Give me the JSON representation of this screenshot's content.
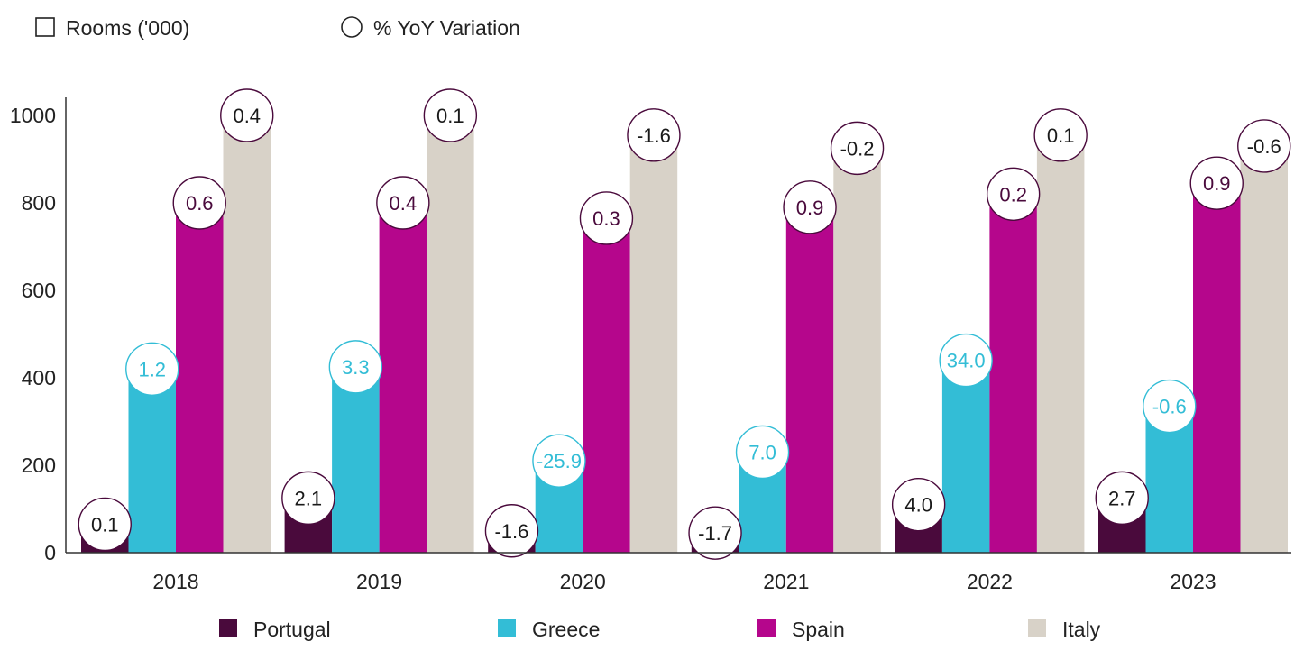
{
  "legend_top": {
    "bars_label": "Rooms ('000)",
    "circles_label": "% YoY Variation"
  },
  "colors": {
    "Portugal": "#4a0a3c",
    "Greece": "#33bdd6",
    "Spain": "#b5068c",
    "Italy": "#d8d2c8",
    "axis": "#333333",
    "circle_border_dark": "#4a0a3c"
  },
  "chart_data": {
    "type": "bar",
    "categories": [
      "2018",
      "2019",
      "2020",
      "2021",
      "2022",
      "2023"
    ],
    "ylim": [
      0,
      1000
    ],
    "yticks": [
      0,
      200,
      400,
      600,
      800,
      1000
    ],
    "xlabel": "",
    "ylabel": "",
    "series": [
      {
        "name": "Portugal",
        "values": [
          65,
          125,
          50,
          45,
          110,
          125
        ],
        "yoy_labels": [
          "0.1",
          "2.1",
          "-1.6",
          "-1.7",
          "4.0",
          "2.7"
        ]
      },
      {
        "name": "Greece",
        "values": [
          420,
          425,
          210,
          230,
          440,
          335
        ],
        "yoy_labels": [
          "1.2",
          "3.3",
          "-25.9",
          "7.0",
          "34.0",
          "-0.6"
        ]
      },
      {
        "name": "Spain",
        "values": [
          800,
          800,
          765,
          790,
          820,
          845
        ],
        "yoy_labels": [
          "0.6",
          "0.4",
          "0.3",
          "0.9",
          "0.2",
          "0.9"
        ]
      },
      {
        "name": "Italy",
        "values": [
          1000,
          1000,
          955,
          925,
          955,
          930
        ],
        "yoy_labels": [
          "0.4",
          "0.1",
          "-1.6",
          "-0.2",
          "0.1",
          "-0.6"
        ]
      }
    ],
    "legend_position": "bottom"
  }
}
